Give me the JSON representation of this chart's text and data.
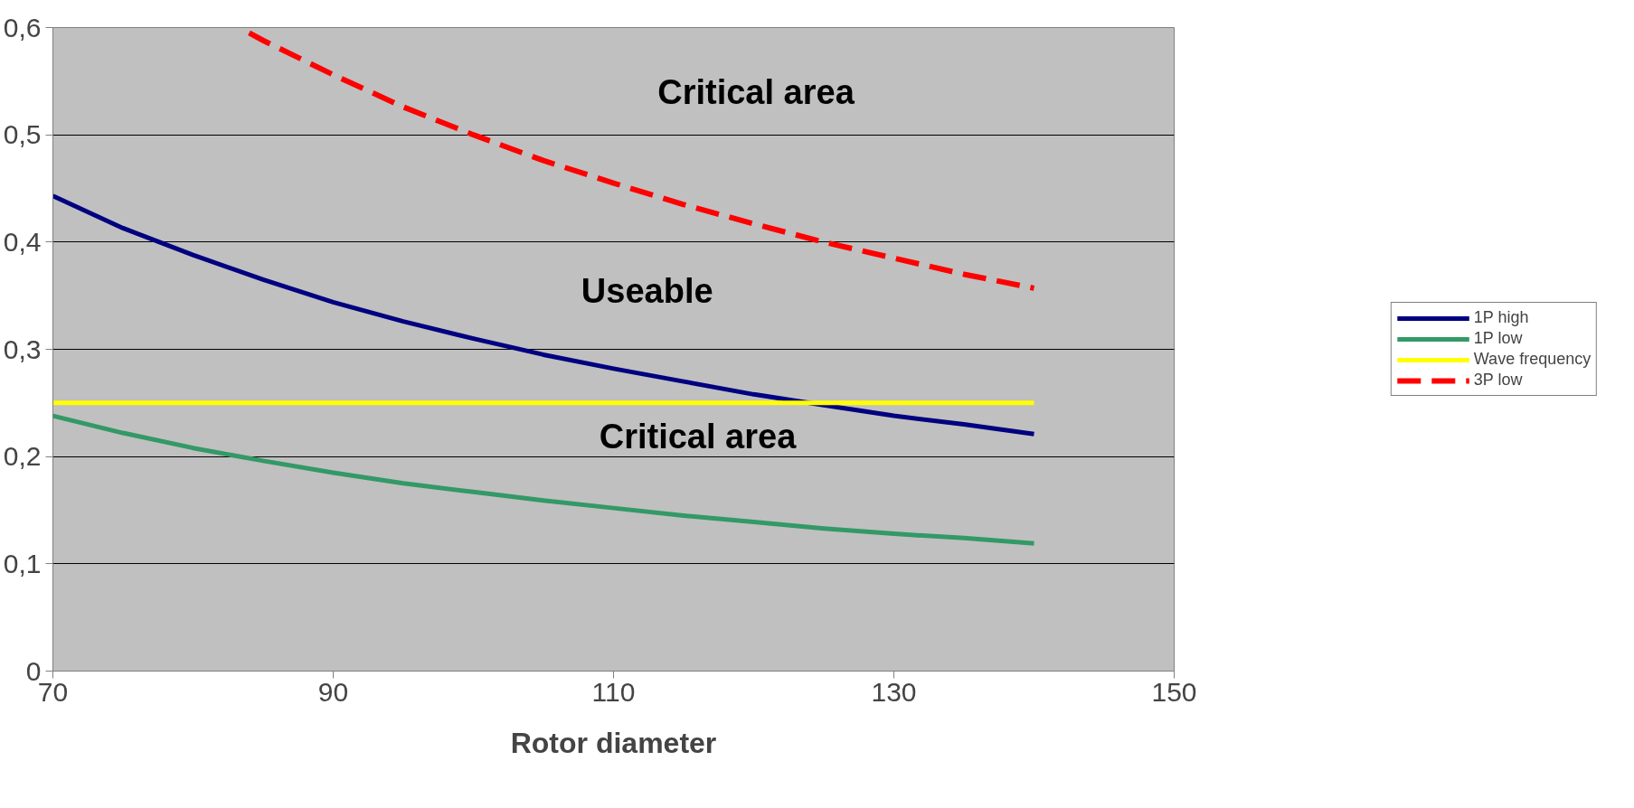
{
  "chart_data": {
    "type": "line",
    "xlabel": "Rotor diameter",
    "xlim": [
      70,
      150
    ],
    "ylim": [
      0,
      0.6
    ],
    "xticks": [
      70,
      90,
      110,
      130,
      150
    ],
    "yticks": [
      0,
      {
        "value": 0.1,
        "label": "0,1"
      },
      {
        "value": 0.2,
        "label": "0,2"
      },
      {
        "value": 0.3,
        "label": "0,3"
      },
      {
        "value": 0.4,
        "label": "0,4"
      },
      {
        "value": 0.5,
        "label": "0,5"
      },
      {
        "value": 0.6,
        "label": "0,6"
      }
    ],
    "grid": "y",
    "legend": "right",
    "line_style": "solid",
    "x": [
      70,
      75,
      80,
      85,
      90,
      95,
      100,
      105,
      110,
      115,
      120,
      125,
      130,
      135,
      140
    ],
    "series": [
      {
        "name": "1P high",
        "color": "#000080",
        "values": [
          0.443,
          0.413,
          0.388,
          0.365,
          0.344,
          0.326,
          0.31,
          0.295,
          0.282,
          0.27,
          0.258,
          0.248,
          0.238,
          0.23,
          0.221
        ]
      },
      {
        "name": "1P low",
        "color": "#339966",
        "values": [
          0.238,
          0.222,
          0.208,
          0.196,
          0.185,
          0.175,
          0.167,
          0.159,
          0.152,
          0.145,
          0.139,
          0.133,
          0.128,
          0.124,
          0.119
        ]
      },
      {
        "name": "Wave frequency",
        "color": "#ffff00",
        "values": [
          0.25,
          0.25,
          0.25,
          0.25,
          0.25,
          0.25,
          0.25,
          0.25,
          0.25,
          0.25,
          0.25,
          0.25,
          0.25,
          0.25,
          0.25
        ]
      },
      {
        "name": "3P low",
        "color": "#ff0000",
        "line_style": "dashed",
        "x": [
          84,
          85,
          90,
          95,
          100,
          105,
          110,
          115,
          120,
          125,
          130,
          135,
          140
        ],
        "values": [
          0.595,
          0.588,
          0.556,
          0.526,
          0.5,
          0.476,
          0.455,
          0.435,
          0.417,
          0.4,
          0.385,
          0.37,
          0.357
        ]
      }
    ],
    "annotations": [
      "Critical area",
      "Useable",
      "Critical area"
    ]
  }
}
